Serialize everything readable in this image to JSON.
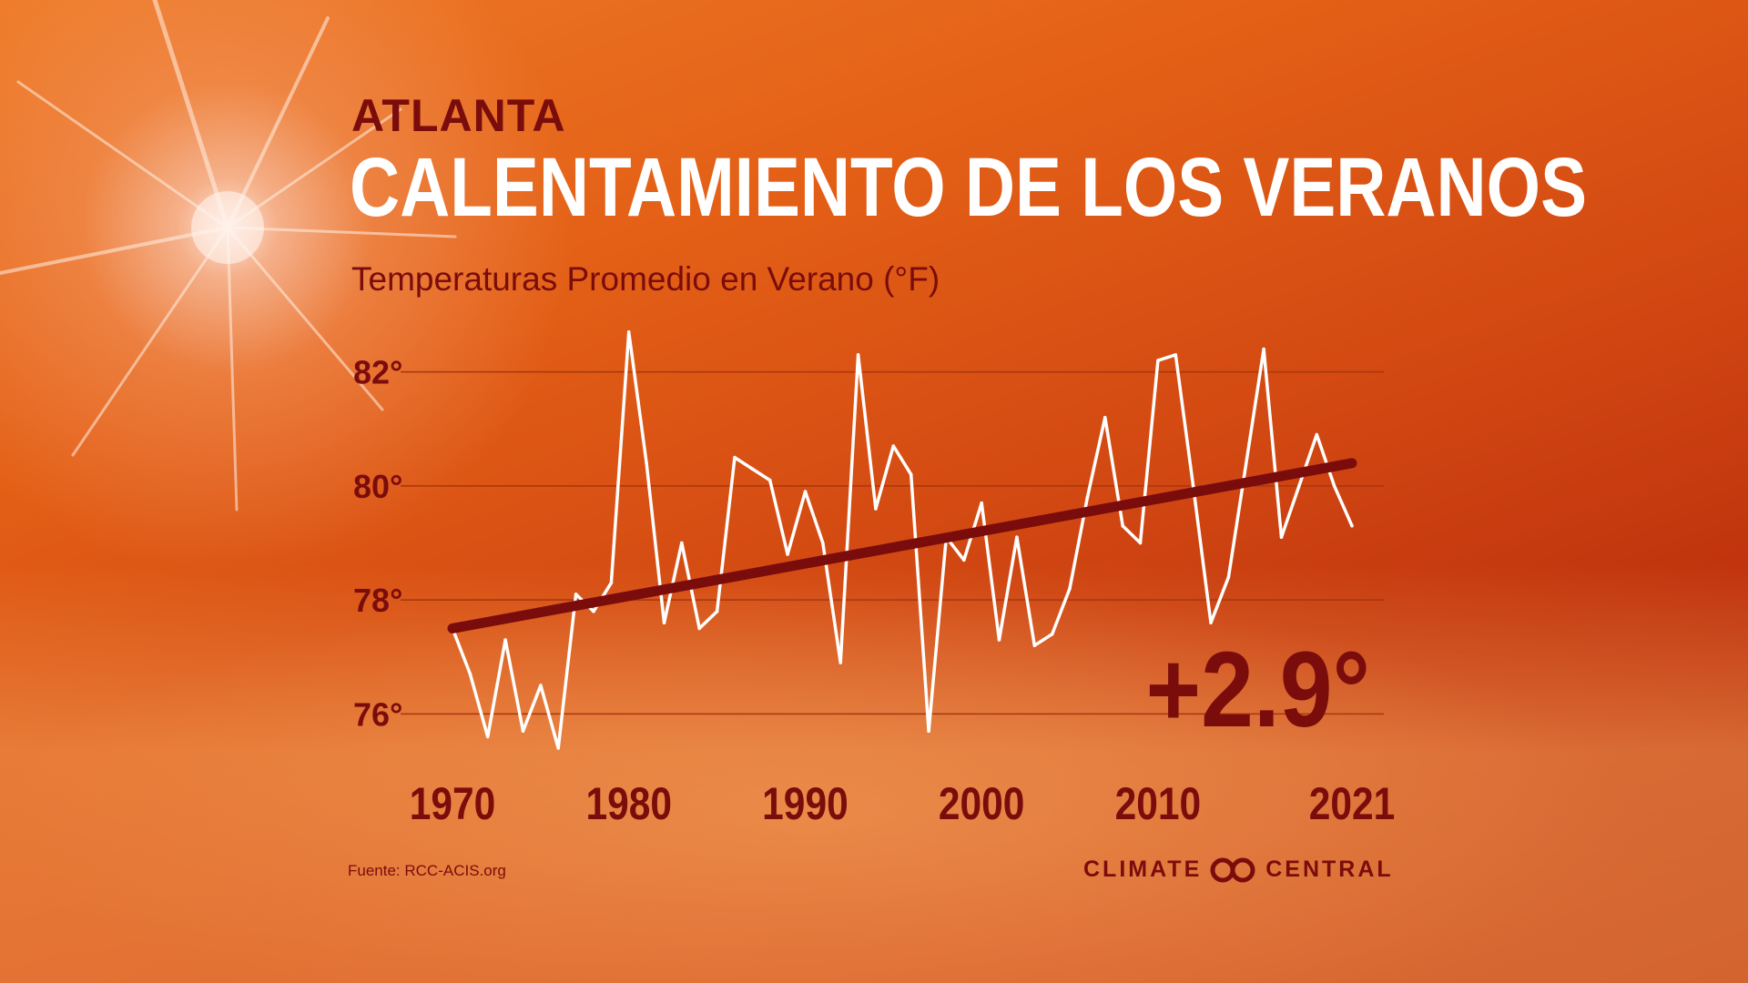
{
  "header": {
    "city": "ATLANTA",
    "title": "CALENTAMIENTO DE LOS VERANOS",
    "subtitle": "Temperaturas Promedio en Verano (°F)"
  },
  "footer": {
    "source": "Fuente: RCC-ACIS.org",
    "brand_left": "CLIMATE",
    "brand_right": "CENTRAL"
  },
  "colors": {
    "accent": "#7a0c0c",
    "line": "#ffffff",
    "trend": "#7a0c0c",
    "gridline": "#a8360f"
  },
  "chart_data": {
    "type": "line",
    "title": "Temperaturas Promedio en Verano (°F)",
    "xlim": [
      1970,
      2021
    ],
    "ylim": [
      75,
      83
    ],
    "y_ticks": [
      76,
      78,
      80,
      82
    ],
    "y_tick_labels": [
      "76°",
      "78°",
      "80°",
      "82°"
    ],
    "x_ticks": [
      1970,
      1980,
      1990,
      2000,
      2010,
      2021
    ],
    "x_tick_labels": [
      "1970",
      "1980",
      "1990",
      "2000",
      "2010",
      "2021"
    ],
    "grid": "horizontal",
    "annotation": "+2.9°",
    "series": [
      {
        "x": [
          1970,
          1971,
          1972,
          1973,
          1974,
          1975,
          1976,
          1977,
          1978,
          1979,
          1980,
          1981,
          1982,
          1983,
          1984,
          1985,
          1986,
          1987,
          1988,
          1989,
          1990,
          1991,
          1992,
          1993,
          1994,
          1995,
          1996,
          1997,
          1998,
          1999,
          2000,
          2001,
          2002,
          2003,
          2004,
          2005,
          2006,
          2007,
          2008,
          2009,
          2010,
          2011,
          2012,
          2013,
          2014,
          2015,
          2016,
          2017,
          2018,
          2019,
          2020,
          2021
        ],
        "values": [
          77.5,
          76.7,
          75.6,
          77.3,
          75.7,
          76.5,
          75.4,
          78.1,
          77.8,
          78.3,
          82.7,
          80.4,
          77.6,
          79.0,
          77.5,
          77.8,
          80.5,
          80.3,
          80.1,
          78.8,
          79.9,
          79.0,
          76.9,
          82.3,
          79.6,
          80.7,
          80.2,
          75.7,
          79.1,
          78.7,
          79.7,
          77.3,
          79.1,
          77.2,
          77.4,
          78.2,
          79.8,
          81.2,
          79.3,
          79.0,
          82.2,
          82.3,
          80.0,
          77.6,
          78.4,
          80.4,
          82.4,
          79.1,
          80.0,
          80.9,
          80.0,
          79.3
        ]
      },
      {
        "x": [
          1970,
          2021
        ],
        "values": [
          77.5,
          80.4
        ]
      }
    ]
  }
}
